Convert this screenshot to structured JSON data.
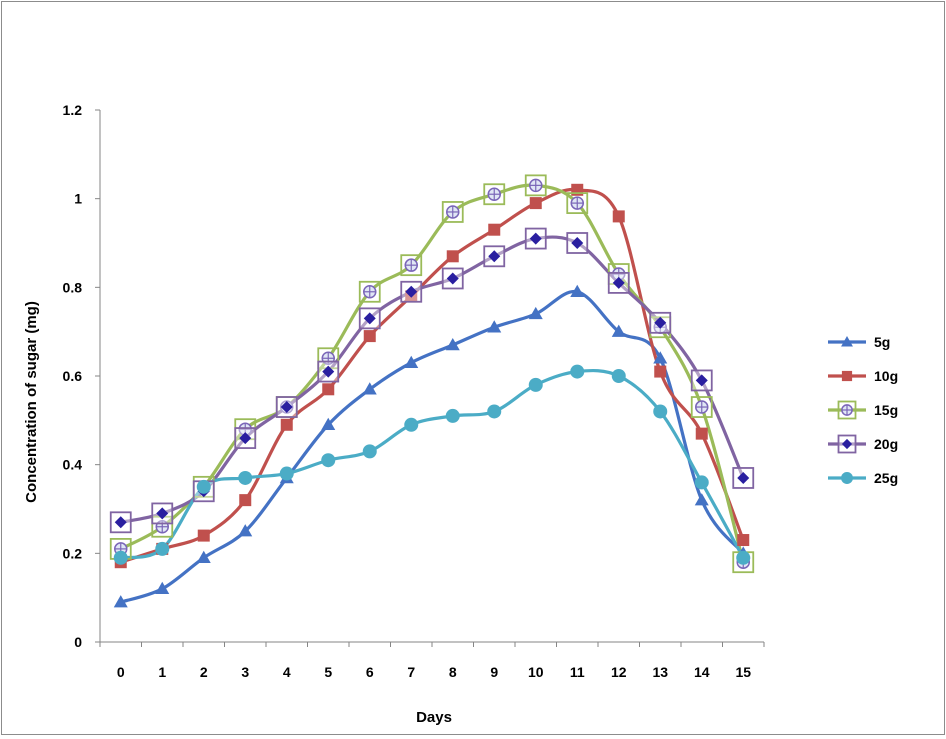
{
  "chart_data": {
    "type": "line",
    "title": "",
    "xlabel": "Days",
    "ylabel": "Concentration of sugar (mg)",
    "x": [
      0,
      1,
      2,
      3,
      4,
      5,
      6,
      7,
      8,
      9,
      10,
      11,
      12,
      13,
      14,
      15
    ],
    "ylim": [
      0,
      1.2
    ],
    "yticks": [
      0,
      0.2,
      0.4,
      0.6,
      0.8,
      1,
      1.2
    ],
    "ytick_labels": [
      "0",
      "0.2",
      "0.4",
      "0.6",
      "0.8",
      "1",
      "1.2"
    ],
    "grid": false,
    "legend_position": "right",
    "series": [
      {
        "name": "5g",
        "color": "#4472C4",
        "marker": "triangle",
        "values": [
          0.09,
          0.12,
          0.19,
          0.25,
          0.37,
          0.49,
          0.57,
          0.63,
          0.67,
          0.71,
          0.74,
          0.79,
          0.7,
          0.64,
          0.32,
          0.2
        ]
      },
      {
        "name": "10g",
        "color": "#C0504D",
        "marker": "square",
        "values": [
          0.18,
          0.21,
          0.24,
          0.32,
          0.49,
          0.57,
          0.69,
          0.78,
          0.87,
          0.93,
          0.99,
          1.02,
          0.96,
          0.61,
          0.47,
          0.23
        ]
      },
      {
        "name": "15g",
        "color": "#9BBB59",
        "marker": "square-plus",
        "values": [
          0.21,
          0.26,
          0.35,
          0.48,
          0.53,
          0.64,
          0.79,
          0.85,
          0.97,
          1.01,
          1.03,
          0.99,
          0.83,
          0.71,
          0.53,
          0.18
        ]
      },
      {
        "name": "20g",
        "color": "#8064A2",
        "marker": "square-diamond",
        "values": [
          0.27,
          0.29,
          0.34,
          0.46,
          0.53,
          0.61,
          0.73,
          0.79,
          0.82,
          0.87,
          0.91,
          0.9,
          0.81,
          0.72,
          0.59,
          0.37
        ]
      },
      {
        "name": "25g",
        "color": "#4BACC6",
        "marker": "circle",
        "values": [
          0.19,
          0.21,
          0.35,
          0.37,
          0.38,
          0.41,
          0.43,
          0.49,
          0.51,
          0.52,
          0.58,
          0.61,
          0.6,
          0.52,
          0.36,
          0.19
        ]
      }
    ]
  }
}
